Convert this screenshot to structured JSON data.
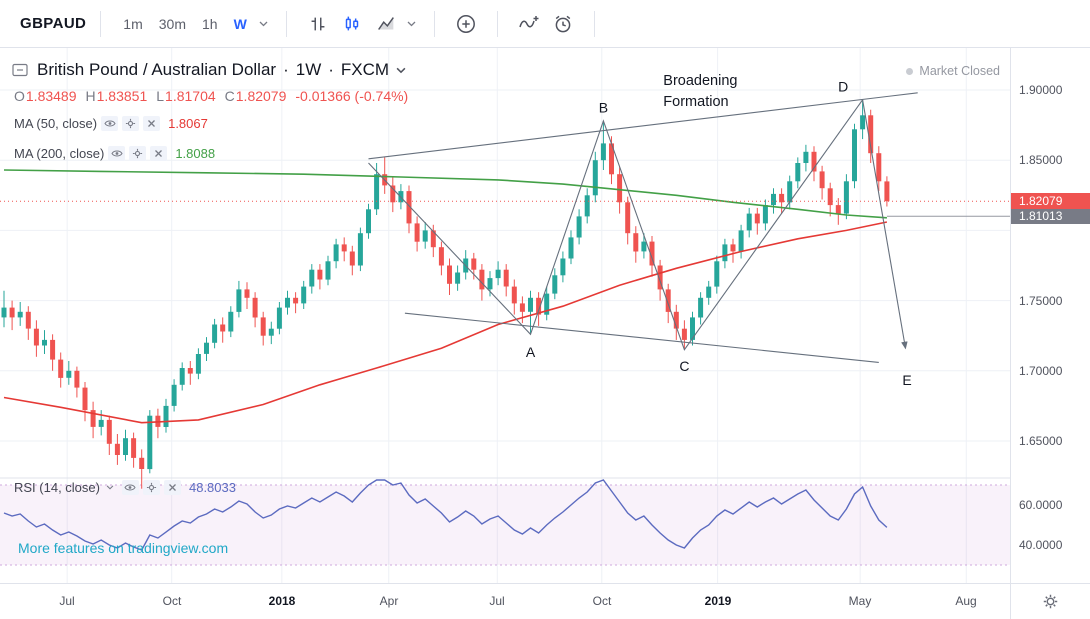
{
  "toolbar": {
    "symbol": "GBPAUD",
    "timeframes": [
      "1m",
      "30m",
      "1h",
      "W"
    ],
    "active_timeframe": "W"
  },
  "legend": {
    "title": "British Pound / Australian Dollar",
    "sep1": "·",
    "interval": "1W",
    "sep2": "·",
    "exchange": "FXCM",
    "ohlc": {
      "o_label": "O",
      "o": "1.83489",
      "h_label": "H",
      "h": "1.83851",
      "l_label": "L",
      "l": "1.81704",
      "c_label": "C",
      "c": "1.82079",
      "change": "-0.01366 (-0.74%)",
      "color": "#ef5350"
    }
  },
  "indicators": [
    {
      "label": "MA (50, close)",
      "value": "1.8067",
      "color": "#e53935"
    },
    {
      "label": "MA (200, close)",
      "value": "1.8088",
      "color": "#43a047"
    }
  ],
  "rsi_legend": {
    "label": "RSI (14, close)",
    "value": "48.8033",
    "color": "#5c6bc0"
  },
  "market_status": "Market Closed",
  "watermark": "More features on tradingview.com",
  "price_axis": {
    "labels": [
      {
        "text": "1.90000",
        "price": 1.9
      },
      {
        "text": "1.85000",
        "price": 1.85
      },
      {
        "text": "1.75000",
        "price": 1.75
      },
      {
        "text": "1.70000",
        "price": 1.7
      },
      {
        "text": "1.65000",
        "price": 1.65
      }
    ],
    "badges": [
      {
        "text": "1.81013",
        "price": 1.81013,
        "bg": "#787b86"
      },
      {
        "text": "1.82079",
        "price": 1.82079,
        "bg": "#ef5350"
      }
    ]
  },
  "rsi_axis": [
    {
      "text": "60.0000",
      "value": 60
    },
    {
      "text": "40.0000",
      "value": 40
    }
  ],
  "chart_data": {
    "type": "candlestick",
    "symbol": "GBPAUD",
    "interval": "1W",
    "exchange": "FXCM",
    "ylim": [
      1.63,
      1.92
    ],
    "colors": {
      "up": "#26a69a",
      "down": "#ef5350"
    },
    "price_gridlines": [
      1.9,
      1.85,
      1.8,
      1.75,
      1.7,
      1.65
    ],
    "time_ticks": [
      {
        "label": "Jul",
        "i": 7.8
      },
      {
        "label": "Oct",
        "i": 20.7
      },
      {
        "label": "2018",
        "i": 34.3,
        "major": true
      },
      {
        "label": "Apr",
        "i": 47.5
      },
      {
        "label": "Jul",
        "i": 60.9
      },
      {
        "label": "Oct",
        "i": 73.8
      },
      {
        "label": "2019",
        "i": 88.1,
        "major": true
      },
      {
        "label": "May",
        "i": 105.7
      },
      {
        "label": "Aug",
        "i": 118.8,
        "major": false
      }
    ],
    "candles": [
      [
        1.738,
        1.757,
        1.731,
        1.745
      ],
      [
        1.745,
        1.75,
        1.729,
        1.738
      ],
      [
        1.738,
        1.749,
        1.732,
        1.742
      ],
      [
        1.742,
        1.746,
        1.722,
        1.73
      ],
      [
        1.73,
        1.736,
        1.71,
        1.718
      ],
      [
        1.718,
        1.729,
        1.712,
        1.722
      ],
      [
        1.722,
        1.726,
        1.7,
        1.708
      ],
      [
        1.708,
        1.713,
        1.688,
        1.695
      ],
      [
        1.695,
        1.707,
        1.69,
        1.7
      ],
      [
        1.7,
        1.703,
        1.681,
        1.688
      ],
      [
        1.688,
        1.692,
        1.664,
        1.672
      ],
      [
        1.672,
        1.678,
        1.652,
        1.66
      ],
      [
        1.66,
        1.672,
        1.654,
        1.665
      ],
      [
        1.665,
        1.668,
        1.64,
        1.648
      ],
      [
        1.648,
        1.655,
        1.633,
        1.64
      ],
      [
        1.64,
        1.658,
        1.636,
        1.652
      ],
      [
        1.652,
        1.656,
        1.631,
        1.638
      ],
      [
        1.638,
        1.644,
        1.616,
        1.63
      ],
      [
        1.63,
        1.672,
        1.627,
        1.668
      ],
      [
        1.668,
        1.673,
        1.652,
        1.66
      ],
      [
        1.66,
        1.68,
        1.656,
        1.675
      ],
      [
        1.675,
        1.694,
        1.671,
        1.69
      ],
      [
        1.69,
        1.706,
        1.686,
        1.702
      ],
      [
        1.702,
        1.707,
        1.69,
        1.698
      ],
      [
        1.698,
        1.716,
        1.694,
        1.712
      ],
      [
        1.712,
        1.724,
        1.707,
        1.72
      ],
      [
        1.72,
        1.737,
        1.716,
        1.733
      ],
      [
        1.733,
        1.738,
        1.72,
        1.728
      ],
      [
        1.728,
        1.746,
        1.724,
        1.742
      ],
      [
        1.742,
        1.764,
        1.738,
        1.758
      ],
      [
        1.758,
        1.763,
        1.744,
        1.752
      ],
      [
        1.752,
        1.756,
        1.731,
        1.738
      ],
      [
        1.738,
        1.742,
        1.718,
        1.725
      ],
      [
        1.725,
        1.735,
        1.719,
        1.73
      ],
      [
        1.73,
        1.749,
        1.726,
        1.745
      ],
      [
        1.745,
        1.757,
        1.74,
        1.752
      ],
      [
        1.752,
        1.756,
        1.741,
        1.748
      ],
      [
        1.748,
        1.764,
        1.744,
        1.76
      ],
      [
        1.76,
        1.776,
        1.755,
        1.772
      ],
      [
        1.772,
        1.776,
        1.758,
        1.765
      ],
      [
        1.765,
        1.782,
        1.761,
        1.778
      ],
      [
        1.778,
        1.794,
        1.773,
        1.79
      ],
      [
        1.79,
        1.795,
        1.778,
        1.785
      ],
      [
        1.785,
        1.789,
        1.768,
        1.775
      ],
      [
        1.775,
        1.802,
        1.771,
        1.798
      ],
      [
        1.798,
        1.819,
        1.794,
        1.815
      ],
      [
        1.815,
        1.848,
        1.811,
        1.84
      ],
      [
        1.84,
        1.852,
        1.826,
        1.832
      ],
      [
        1.832,
        1.838,
        1.813,
        1.82
      ],
      [
        1.82,
        1.833,
        1.815,
        1.828
      ],
      [
        1.828,
        1.832,
        1.798,
        1.805
      ],
      [
        1.805,
        1.81,
        1.785,
        1.792
      ],
      [
        1.792,
        1.806,
        1.787,
        1.8
      ],
      [
        1.8,
        1.804,
        1.781,
        1.788
      ],
      [
        1.788,
        1.792,
        1.768,
        1.775
      ],
      [
        1.775,
        1.78,
        1.754,
        1.762
      ],
      [
        1.762,
        1.775,
        1.757,
        1.77
      ],
      [
        1.77,
        1.786,
        1.765,
        1.78
      ],
      [
        1.78,
        1.784,
        1.765,
        1.772
      ],
      [
        1.772,
        1.776,
        1.75,
        1.758
      ],
      [
        1.758,
        1.771,
        1.753,
        1.766
      ],
      [
        1.766,
        1.778,
        1.761,
        1.772
      ],
      [
        1.772,
        1.776,
        1.753,
        1.76
      ],
      [
        1.76,
        1.765,
        1.74,
        1.748
      ],
      [
        1.748,
        1.753,
        1.734,
        1.742
      ],
      [
        1.742,
        1.757,
        1.726,
        1.752
      ],
      [
        1.752,
        1.756,
        1.732,
        1.74
      ],
      [
        1.74,
        1.76,
        1.736,
        1.755
      ],
      [
        1.755,
        1.773,
        1.751,
        1.768
      ],
      [
        1.768,
        1.785,
        1.763,
        1.78
      ],
      [
        1.78,
        1.8,
        1.776,
        1.795
      ],
      [
        1.795,
        1.815,
        1.79,
        1.81
      ],
      [
        1.81,
        1.83,
        1.805,
        1.825
      ],
      [
        1.825,
        1.856,
        1.82,
        1.85
      ],
      [
        1.85,
        1.878,
        1.843,
        1.862
      ],
      [
        1.862,
        1.867,
        1.833,
        1.84
      ],
      [
        1.84,
        1.845,
        1.812,
        1.82
      ],
      [
        1.82,
        1.824,
        1.79,
        1.798
      ],
      [
        1.798,
        1.803,
        1.777,
        1.785
      ],
      [
        1.785,
        1.798,
        1.78,
        1.792
      ],
      [
        1.792,
        1.796,
        1.767,
        1.775
      ],
      [
        1.775,
        1.779,
        1.75,
        1.758
      ],
      [
        1.758,
        1.762,
        1.734,
        1.742
      ],
      [
        1.742,
        1.747,
        1.722,
        1.73
      ],
      [
        1.73,
        1.736,
        1.715,
        1.722
      ],
      [
        1.722,
        1.742,
        1.718,
        1.738
      ],
      [
        1.738,
        1.756,
        1.733,
        1.752
      ],
      [
        1.752,
        1.764,
        1.747,
        1.76
      ],
      [
        1.76,
        1.782,
        1.755,
        1.778
      ],
      [
        1.778,
        1.794,
        1.773,
        1.79
      ],
      [
        1.79,
        1.794,
        1.777,
        1.785
      ],
      [
        1.785,
        1.804,
        1.78,
        1.8
      ],
      [
        1.8,
        1.816,
        1.795,
        1.812
      ],
      [
        1.812,
        1.816,
        1.797,
        1.805
      ],
      [
        1.805,
        1.822,
        1.8,
        1.818
      ],
      [
        1.818,
        1.83,
        1.812,
        1.826
      ],
      [
        1.826,
        1.83,
        1.812,
        1.82
      ],
      [
        1.82,
        1.839,
        1.815,
        1.835
      ],
      [
        1.835,
        1.852,
        1.83,
        1.848
      ],
      [
        1.848,
        1.861,
        1.842,
        1.856
      ],
      [
        1.856,
        1.86,
        1.835,
        1.842
      ],
      [
        1.842,
        1.846,
        1.822,
        1.83
      ],
      [
        1.83,
        1.834,
        1.81,
        1.818
      ],
      [
        1.818,
        1.823,
        1.804,
        1.812
      ],
      [
        1.812,
        1.84,
        1.808,
        1.835
      ],
      [
        1.835,
        1.876,
        1.83,
        1.872
      ],
      [
        1.872,
        1.893,
        1.865,
        1.882
      ],
      [
        1.882,
        1.886,
        1.848,
        1.855
      ],
      [
        1.855,
        1.86,
        1.828,
        1.835
      ],
      [
        1.83489,
        1.83851,
        1.81704,
        1.82079
      ]
    ],
    "ma50": {
      "name": "MA 50",
      "color": "#e53935",
      "points": [
        [
          0,
          1.681
        ],
        [
          7,
          1.674
        ],
        [
          17,
          1.663
        ],
        [
          24,
          1.665
        ],
        [
          32,
          1.676
        ],
        [
          39,
          1.69
        ],
        [
          46,
          1.702
        ],
        [
          54,
          1.716
        ],
        [
          61,
          1.733
        ],
        [
          69,
          1.746
        ],
        [
          76,
          1.761
        ],
        [
          83,
          1.773
        ],
        [
          91,
          1.785
        ],
        [
          98,
          1.794
        ],
        [
          104,
          1.8
        ],
        [
          109,
          1.806
        ]
      ]
    },
    "ma200": {
      "name": "MA 200",
      "color": "#43a047",
      "points": [
        [
          0,
          1.843
        ],
        [
          12,
          1.842
        ],
        [
          25,
          1.841
        ],
        [
          37,
          1.84
        ],
        [
          49,
          1.838
        ],
        [
          61,
          1.836
        ],
        [
          69,
          1.833
        ],
        [
          76,
          1.829
        ],
        [
          83,
          1.825
        ],
        [
          90,
          1.82
        ],
        [
          98,
          1.815
        ],
        [
          104,
          1.811
        ],
        [
          109,
          1.809
        ]
      ]
    },
    "last_price": 1.82079,
    "ma_last_line": 1.81013,
    "rsi": {
      "period": 14,
      "color": "#5c6bc0",
      "band": [
        30,
        70
      ],
      "last_value": 48.8033,
      "values": [
        56,
        54.5,
        55.5,
        52,
        49,
        50.5,
        47.5,
        45,
        46.5,
        44.5,
        42,
        40.5,
        42.5,
        40,
        38.5,
        41,
        39,
        37.5,
        45,
        43.5,
        46.5,
        49.5,
        52,
        51,
        54,
        55.5,
        58,
        56.5,
        59,
        62,
        60.5,
        56.5,
        53.5,
        55,
        58,
        59.5,
        58.5,
        61,
        63.5,
        61.5,
        64,
        66.5,
        64.5,
        61.5,
        66,
        70,
        74.5,
        72.5,
        70,
        71,
        65,
        61,
        63,
        59.5,
        56,
        51.5,
        54,
        57,
        54.5,
        50.5,
        53,
        54.5,
        51,
        47.5,
        45.5,
        48.5,
        46,
        50,
        53.5,
        56.5,
        60,
        63.5,
        66.5,
        71,
        73.5,
        67,
        61.5,
        56,
        52.5,
        54.5,
        50,
        46,
        42.5,
        40,
        38.5,
        43.5,
        47.5,
        50,
        54.5,
        57.5,
        55.5,
        58.5,
        61.5,
        59,
        61.5,
        63.5,
        60.5,
        63,
        65.5,
        67.5,
        62.5,
        58.5,
        54.5,
        52.5,
        58,
        65.5,
        69,
        59.5,
        52.5,
        48.8
      ]
    },
    "trendlines": [
      [
        [
          45,
          1.851
        ],
        [
          112.8,
          1.898
        ]
      ],
      [
        [
          49.5,
          1.741
        ],
        [
          108,
          1.706
        ]
      ]
    ],
    "zigzag": [
      [
        45,
        1.848
      ],
      [
        65,
        1.726
      ],
      [
        74,
        1.878
      ],
      [
        84,
        1.715
      ],
      [
        106,
        1.893
      ]
    ],
    "arrow": [
      [
        106,
        1.893
      ],
      [
        111.3,
        1.716
      ]
    ],
    "letters": [
      {
        "t": "A",
        "i": 65,
        "p": 1.71
      },
      {
        "t": "B",
        "i": 74,
        "p": 1.884
      },
      {
        "t": "C",
        "i": 84,
        "p": 1.7
      },
      {
        "t": "D",
        "i": 103.6,
        "p": 1.899
      },
      {
        "t": "E",
        "i": 111.5,
        "p": 1.69
      }
    ],
    "pattern_label": {
      "lines": [
        "Broadening",
        "Formation"
      ],
      "i": 81.4,
      "p": 1.9036
    }
  }
}
